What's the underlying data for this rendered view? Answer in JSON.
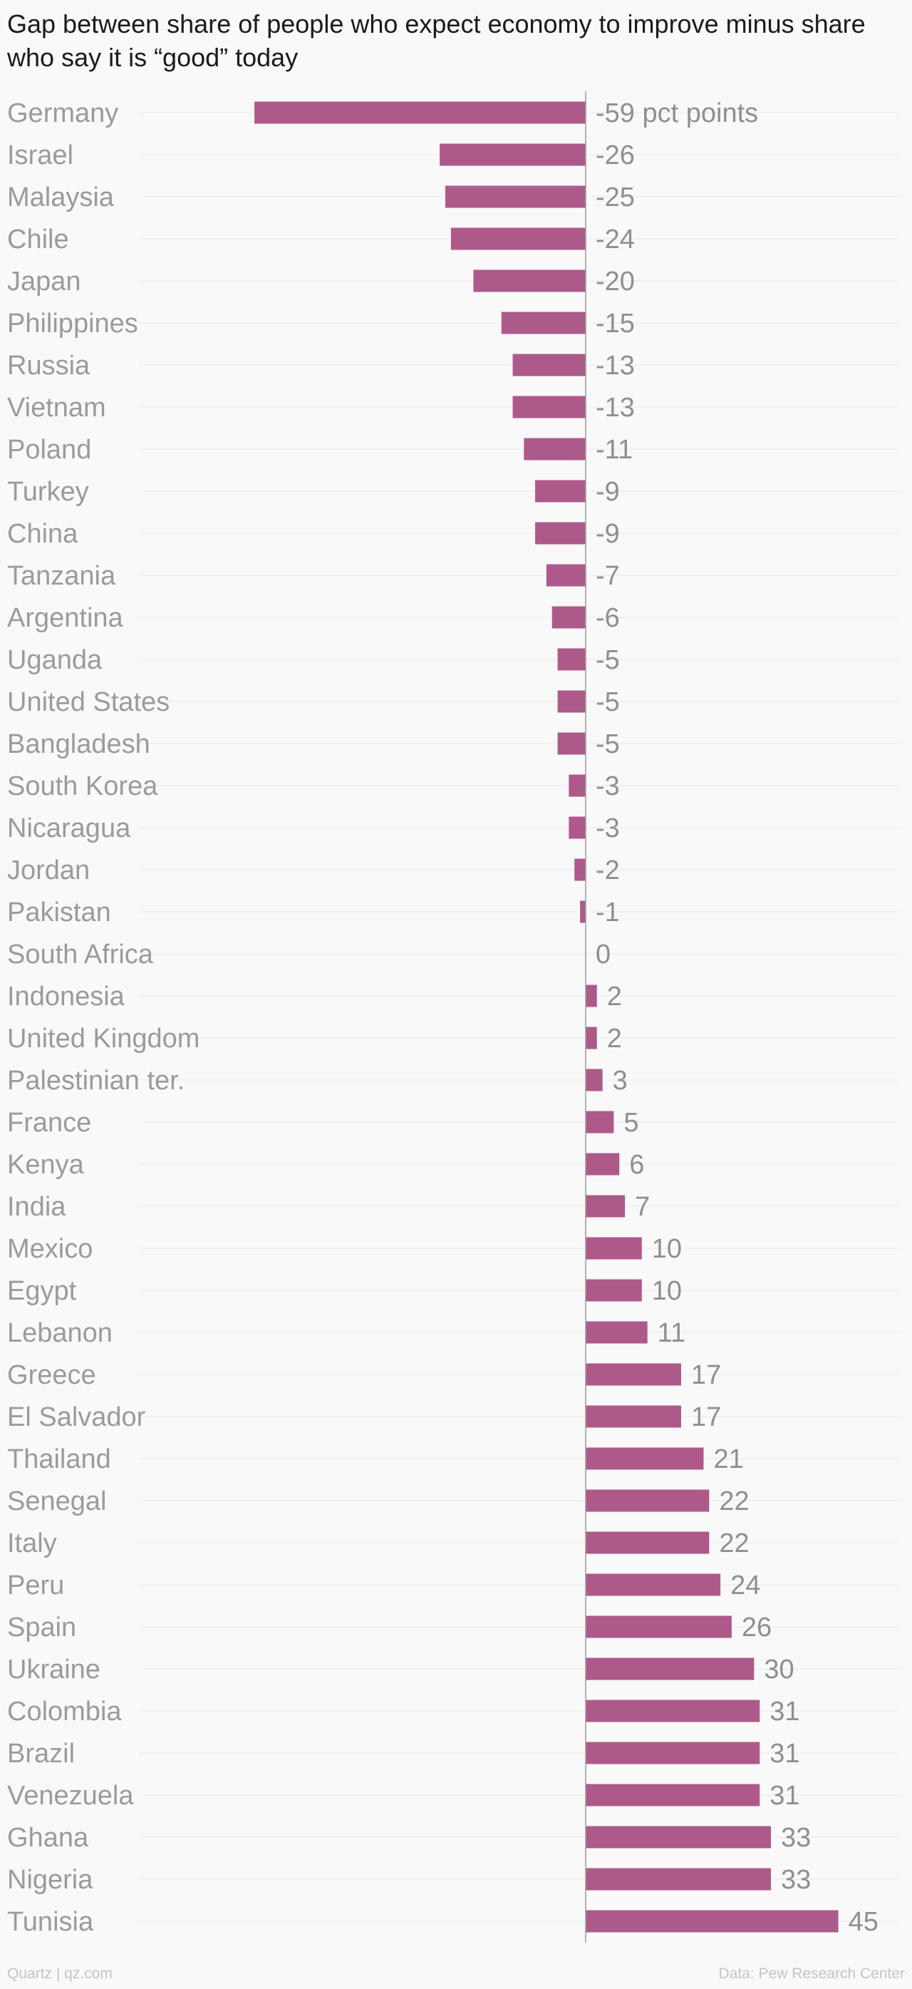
{
  "title": "Gap between share of people who expect economy to improve minus share who say it is “good” today",
  "footer": {
    "source": "Quartz | qz.com",
    "credit": "Data: Pew Research Center"
  },
  "colors": {
    "bar": "#ad5a8b",
    "label": "#9b9b9b",
    "value": "#8f8f8f",
    "grid": "#e6e6e6",
    "axis": "#9b9b9b"
  },
  "chart_data": {
    "type": "bar",
    "orientation": "horizontal",
    "unit": "pct points",
    "categories": [
      "Germany",
      "Israel",
      "Malaysia",
      "Chile",
      "Japan",
      "Philippines",
      "Russia",
      "Vietnam",
      "Poland",
      "Turkey",
      "China",
      "Tanzania",
      "Argentina",
      "Uganda",
      "United States",
      "Bangladesh",
      "South Korea",
      "Nicaragua",
      "Jordan",
      "Pakistan",
      "South Africa",
      "Indonesia",
      "United Kingdom",
      "Palestinian ter.",
      "France",
      "Kenya",
      "India",
      "Mexico",
      "Egypt",
      "Lebanon",
      "Greece",
      "El Salvador",
      "Thailand",
      "Senegal",
      "Italy",
      "Peru",
      "Spain",
      "Ukraine",
      "Colombia",
      "Brazil",
      "Venezuela",
      "Ghana",
      "Nigeria",
      "Tunisia"
    ],
    "values": [
      -59,
      -26,
      -25,
      -24,
      -20,
      -15,
      -13,
      -13,
      -11,
      -9,
      -9,
      -7,
      -6,
      -5,
      -5,
      -5,
      -3,
      -3,
      -2,
      -1,
      0,
      2,
      2,
      3,
      5,
      6,
      7,
      10,
      10,
      11,
      17,
      17,
      21,
      22,
      22,
      24,
      26,
      30,
      31,
      31,
      31,
      33,
      33,
      45
    ],
    "value_labels": [
      "-59 pct points",
      "-26",
      "-25",
      "-24",
      "-20",
      "-15",
      "-13",
      "-13",
      "-11",
      "-9",
      "-9",
      "-7",
      "-6",
      "-5",
      "-5",
      "-5",
      "-3",
      "-3",
      "-2",
      "-1",
      "0",
      "2",
      "2",
      "3",
      "5",
      "6",
      "7",
      "10",
      "10",
      "11",
      "17",
      "17",
      "21",
      "22",
      "22",
      "24",
      "26",
      "30",
      "31",
      "31",
      "31",
      "33",
      "33",
      "45"
    ],
    "xlim": [
      -59,
      45
    ],
    "grid": true,
    "legend": "none",
    "title": "Gap between share of people who expect economy to improve minus share who say it is “good” today",
    "xlabel": "",
    "ylabel": ""
  }
}
